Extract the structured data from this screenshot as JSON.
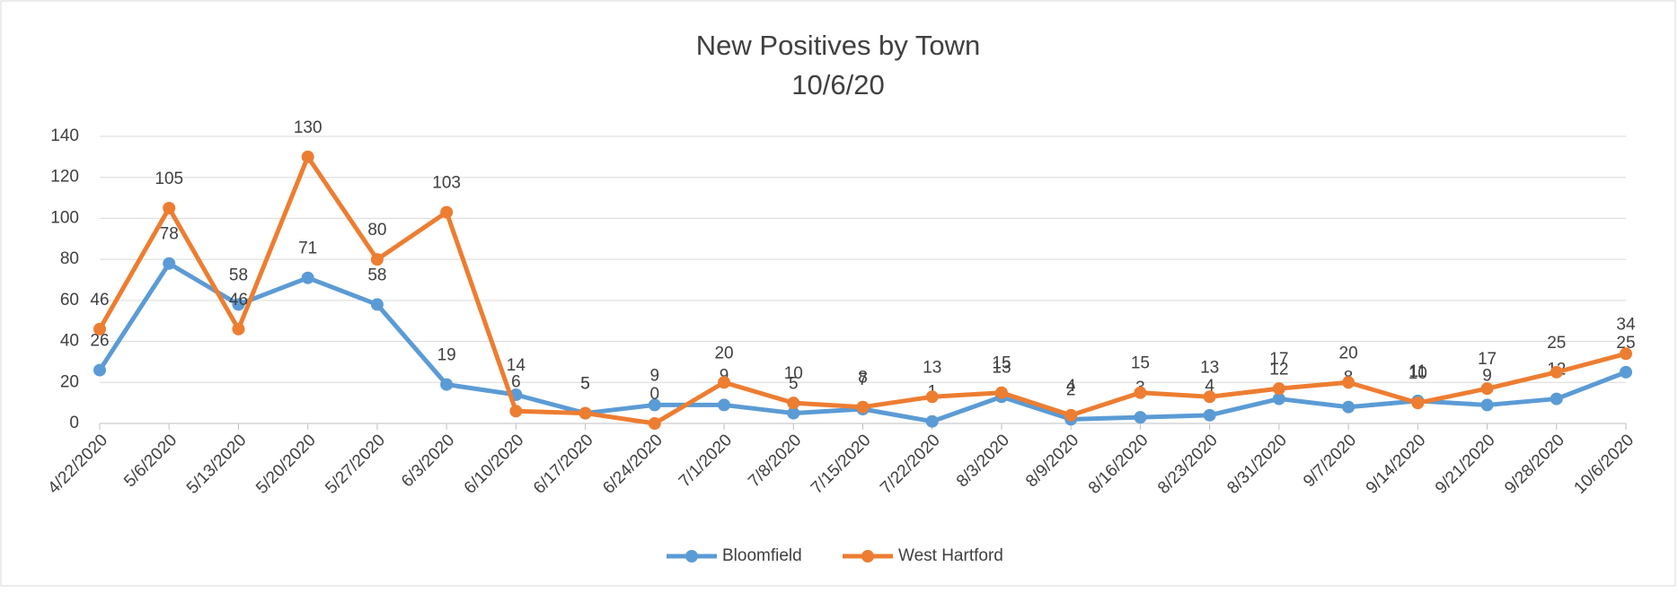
{
  "chart_data": {
    "type": "line",
    "title": "New Positives by Town",
    "subtitle": "10/6/20",
    "categories": [
      "4/22/2020",
      "5/6/2020",
      "5/13/2020",
      "5/20/2020",
      "5/27/2020",
      "6/3/2020",
      "6/10/2020",
      "6/17/2020",
      "6/24/2020",
      "7/1/2020",
      "7/8/2020",
      "7/15/2020",
      "7/22/2020",
      "8/3/2020",
      "8/9/2020",
      "8/16/2020",
      "8/23/2020",
      "8/31/2020",
      "9/7/2020",
      "9/14/2020",
      "9/21/2020",
      "9/28/2020",
      "10/6/2020"
    ],
    "series": [
      {
        "name": "Bloomfield",
        "color": "#5b9bd5",
        "values": [
          26,
          78,
          58,
          71,
          58,
          19,
          14,
          5,
          9,
          9,
          5,
          7,
          1,
          13,
          2,
          3,
          4,
          12,
          8,
          11,
          9,
          12,
          25
        ]
      },
      {
        "name": "West Hartford",
        "color": "#ed7d31",
        "values": [
          46,
          105,
          46,
          130,
          80,
          103,
          6,
          5,
          0,
          20,
          10,
          8,
          13,
          15,
          4,
          15,
          13,
          17,
          20,
          10,
          17,
          25,
          34
        ]
      }
    ],
    "ylim": [
      0,
      140
    ],
    "yticks": [
      0,
      20,
      40,
      60,
      80,
      100,
      120,
      140
    ],
    "grid": true,
    "legend": "bottom"
  }
}
